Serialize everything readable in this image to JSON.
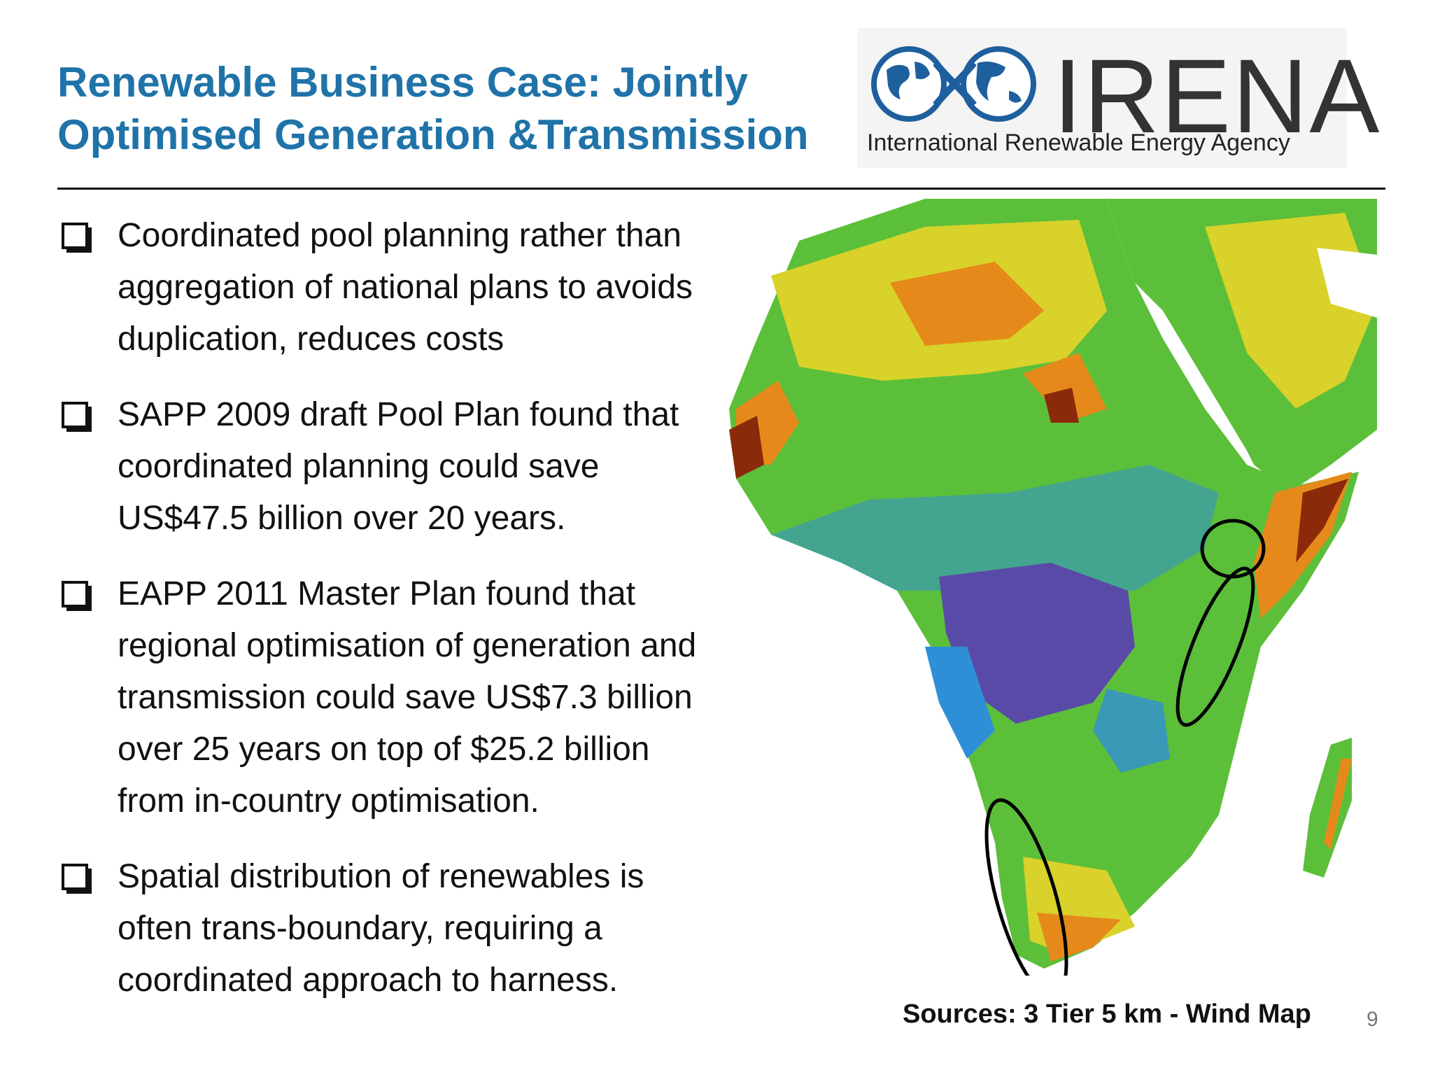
{
  "slide": {
    "title_line1": "Renewable Business Case: Jointly",
    "title_line2": "Optimised Generation &Transmission",
    "page_number": "9"
  },
  "logo": {
    "name": "IRENA",
    "tagline": "International Renewable Energy Agency",
    "icon": "globe-infinity-icon"
  },
  "bullets": [
    {
      "text": "Coordinated pool planning rather than aggregation of national plans to avoids duplication, reduces costs"
    },
    {
      "text": "SAPP 2009 draft Pool Plan found that coordinated planning could save US$47.5 billion over 20 years."
    },
    {
      "text": "EAPP 2011 Master Plan found that regional optimisation of generation and transmission could save US$7.3 billion over 25 years on top of $25.2 billion from in-country optimisation."
    },
    {
      "text": "Spatial distribution of renewables is often trans-boundary, requiring a coordinated approach to harness."
    }
  ],
  "map": {
    "source": "Sources: 3 Tier 5 km - Wind Map",
    "colors": {
      "ocean": "#ffffff",
      "low": "#5a4aa8",
      "low_mid": "#2f8fd6",
      "mid": "#5cbf3a",
      "high_mid": "#d8d22a",
      "high": "#e58a1a",
      "very_high": "#8a2a0a"
    }
  },
  "colors": {
    "title": "#1f73a8",
    "text": "#111111"
  }
}
